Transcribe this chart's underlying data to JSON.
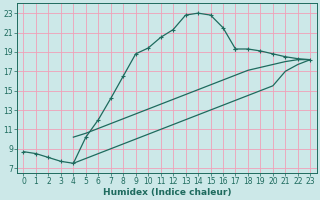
{
  "xlabel": "Humidex (Indice chaleur)",
  "xlim": [
    -0.5,
    23.5
  ],
  "ylim": [
    6.5,
    24
  ],
  "xticks": [
    0,
    1,
    2,
    3,
    4,
    5,
    6,
    7,
    8,
    9,
    10,
    11,
    12,
    13,
    14,
    15,
    16,
    17,
    18,
    19,
    20,
    21,
    22,
    23
  ],
  "yticks": [
    7,
    9,
    11,
    13,
    15,
    17,
    19,
    21,
    23
  ],
  "bg_color": "#cce8e8",
  "grid_color": "#f0a0b8",
  "line_color": "#1e6b5e",
  "line1_x": [
    0,
    1,
    2,
    3,
    4,
    5,
    6,
    7,
    8,
    9,
    10,
    11,
    12,
    13,
    14,
    15,
    16,
    17
  ],
  "line1_y": [
    8.7,
    8.5,
    8.1,
    7.7,
    7.5,
    10.2,
    12.0,
    14.2,
    16.5,
    18.8,
    19.4,
    20.5,
    21.3,
    22.8,
    23.0,
    22.8,
    21.5,
    19.3
  ],
  "line2_x": [
    17,
    18,
    19,
    20,
    21,
    22,
    23
  ],
  "line2_y": [
    19.3,
    19.3,
    19.1,
    18.8,
    18.5,
    18.3,
    18.2
  ],
  "line3_x": [
    4,
    5,
    6,
    7,
    8,
    9,
    10,
    11,
    12,
    13,
    14,
    15,
    16,
    17,
    18,
    19,
    20,
    21,
    22,
    23
  ],
  "line3_y": [
    10.2,
    10.6,
    11.1,
    11.6,
    12.1,
    12.6,
    13.1,
    13.6,
    14.1,
    14.6,
    15.1,
    15.6,
    16.1,
    16.6,
    17.1,
    17.4,
    17.7,
    18.0,
    18.2,
    18.2
  ],
  "line4_x": [
    4,
    5,
    6,
    7,
    8,
    9,
    10,
    11,
    12,
    13,
    14,
    15,
    16,
    17,
    18,
    19,
    20,
    21,
    22,
    23
  ],
  "line4_y": [
    7.5,
    8.0,
    8.5,
    9.0,
    9.5,
    10.0,
    10.5,
    11.0,
    11.5,
    12.0,
    12.5,
    13.0,
    13.5,
    14.0,
    14.5,
    15.0,
    15.5,
    17.0,
    17.7,
    18.2
  ]
}
